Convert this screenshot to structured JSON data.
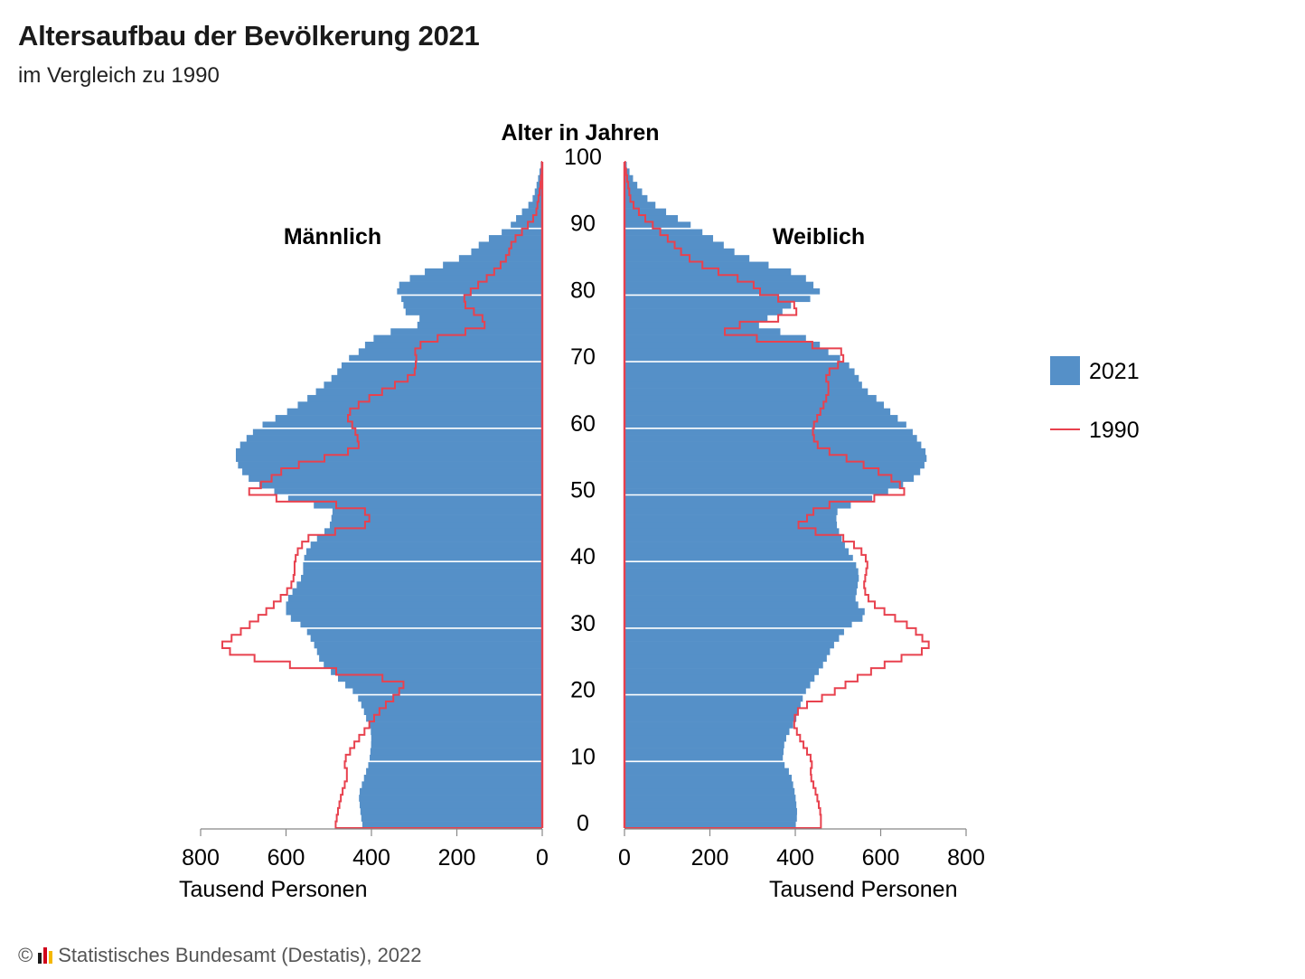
{
  "header": {
    "title": "Altersaufbau der Bevölkerung 2021",
    "subtitle": "im Vergleich zu 1990"
  },
  "footer": {
    "copyright_symbol": "©",
    "source": "Statistisches Bundesamt (Destatis), 2022"
  },
  "colors": {
    "bar_2021": "#5590c8",
    "line_1990": "#e8414e",
    "gridline": "#ffffff",
    "axis": "#888888",
    "logo": [
      "#1a1a1a",
      "#d0021b",
      "#f5b800"
    ]
  },
  "chart_data": {
    "type": "population_pyramid",
    "title": "Altersaufbau der Bevölkerung 2021",
    "subtitle": "im Vergleich zu 1990",
    "center_axis_label": "Alter in Jahren",
    "age_ticks": [
      0,
      10,
      20,
      30,
      40,
      50,
      60,
      70,
      80,
      90,
      100
    ],
    "age_range": [
      0,
      100
    ],
    "x_unit_label": "Tausend Personen",
    "x_ticks": [
      800,
      600,
      400,
      200,
      0
    ],
    "x_ticks_right": [
      0,
      200,
      400,
      600,
      800
    ],
    "xlim": [
      0,
      800
    ],
    "panels": [
      {
        "side": "left",
        "label": "Männlich"
      },
      {
        "side": "right",
        "label": "Weiblich"
      }
    ],
    "legend": {
      "position": "right",
      "entries": [
        {
          "label": "2021",
          "kind": "bar"
        },
        {
          "label": "1990",
          "kind": "line"
        }
      ]
    },
    "series_anchor_ages": [
      0,
      2,
      5,
      8,
      10,
      13,
      15,
      16,
      18,
      20,
      22,
      25,
      27,
      30,
      32,
      34,
      36,
      38,
      40,
      42,
      44,
      45,
      46,
      48,
      49,
      50,
      52,
      54,
      56,
      57,
      58,
      60,
      62,
      64,
      66,
      68,
      70,
      71,
      72,
      73,
      74,
      75,
      76,
      77,
      78,
      79,
      80,
      81,
      82,
      83,
      84,
      85,
      86,
      88,
      90,
      92,
      94,
      96,
      98,
      100
    ],
    "series": [
      {
        "name": "2021",
        "panel": "Männlich",
        "values": [
          420,
          425,
          430,
          415,
          405,
          400,
          402,
          410,
          420,
          435,
          470,
          520,
          530,
          555,
          600,
          600,
          580,
          560,
          560,
          550,
          520,
          500,
          495,
          490,
          580,
          610,
          680,
          710,
          720,
          715,
          700,
          670,
          610,
          560,
          520,
          485,
          465,
          440,
          420,
          410,
          380,
          330,
          255,
          320,
          320,
          330,
          330,
          350,
          320,
          300,
          250,
          215,
          175,
          140,
          80,
          55,
          25,
          15,
          8,
          2
        ]
      },
      {
        "name": "1990",
        "panel": "Männlich",
        "values": [
          485,
          480,
          470,
          455,
          465,
          435,
          410,
          400,
          375,
          340,
          320,
          645,
          760,
          695,
          655,
          620,
          590,
          580,
          580,
          570,
          540,
          430,
          400,
          420,
          545,
          700,
          645,
          600,
          480,
          430,
          430,
          440,
          460,
          420,
          360,
          300,
          295,
          295,
          300,
          270,
          220,
          140,
          130,
          150,
          170,
          190,
          175,
          160,
          140,
          120,
          105,
          90,
          80,
          70,
          40,
          15,
          10,
          5,
          2,
          0
        ]
      },
      {
        "name": "2021",
        "panel": "Weiblich",
        "values": [
          400,
          405,
          400,
          390,
          370,
          375,
          390,
          400,
          410,
          420,
          440,
          470,
          485,
          520,
          570,
          540,
          545,
          550,
          540,
          520,
          505,
          500,
          495,
          500,
          560,
          600,
          670,
          700,
          710,
          700,
          690,
          670,
          630,
          600,
          560,
          545,
          520,
          490,
          465,
          450,
          400,
          330,
          300,
          370,
          370,
          410,
          460,
          455,
          430,
          420,
          360,
          315,
          270,
          220,
          170,
          110,
          60,
          35,
          15,
          2
        ]
      },
      {
        "name": "1990",
        "panel": "Weiblich",
        "values": [
          460,
          460,
          450,
          435,
          440,
          415,
          400,
          395,
          410,
          480,
          530,
          625,
          720,
          675,
          620,
          575,
          560,
          565,
          570,
          550,
          500,
          395,
          420,
          450,
          510,
          660,
          640,
          580,
          500,
          460,
          445,
          440,
          455,
          470,
          480,
          470,
          510,
          515,
          500,
          380,
          240,
          230,
          310,
          410,
          395,
          400,
          320,
          315,
          290,
          240,
          200,
          165,
          140,
          110,
          75,
          40,
          15,
          10,
          5,
          0
        ]
      }
    ]
  }
}
